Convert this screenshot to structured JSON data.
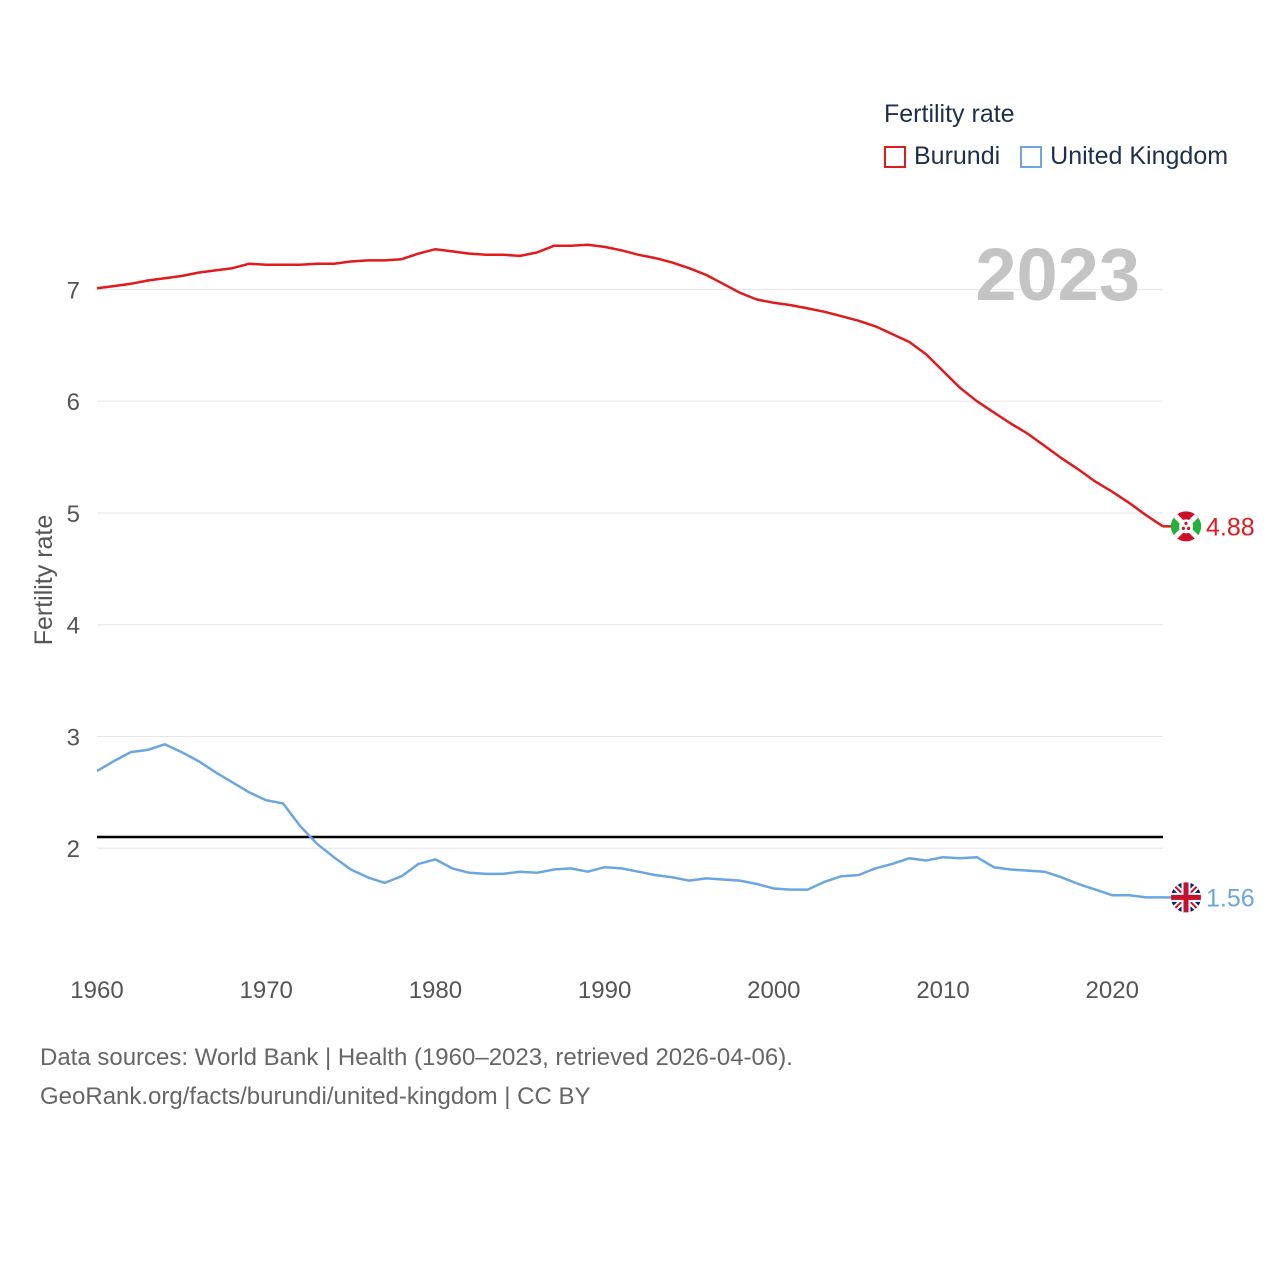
{
  "legend": {
    "title": "Fertility rate",
    "items": [
      {
        "label": "Burundi",
        "color": "#e31a1c"
      },
      {
        "label": "United Kingdom",
        "color": "#6aa6e0"
      }
    ]
  },
  "footer": {
    "line1": "Data sources: World Bank | Health (1960–2023, retrieved 2026-04-06).",
    "line2": "GeoRank.org/facts/burundi/united-kingdom | CC BY"
  },
  "chart_data": {
    "type": "line",
    "year_label": "2023",
    "ylabel": "Fertility rate",
    "xlabel": "",
    "xlim": [
      1960,
      2023
    ],
    "ylim": [
      1.0,
      7.8
    ],
    "x_ticks": [
      1960,
      1970,
      1980,
      1990,
      2000,
      2010,
      2020
    ],
    "y_ticks": [
      2,
      3,
      4,
      5,
      6,
      7
    ],
    "grid": true,
    "reference_line": {
      "y": 2.1,
      "color": "#000000"
    },
    "x": [
      1960,
      1961,
      1962,
      1963,
      1964,
      1965,
      1966,
      1967,
      1968,
      1969,
      1970,
      1971,
      1972,
      1973,
      1974,
      1975,
      1976,
      1977,
      1978,
      1979,
      1980,
      1981,
      1982,
      1983,
      1984,
      1985,
      1986,
      1987,
      1988,
      1989,
      1990,
      1991,
      1992,
      1993,
      1994,
      1995,
      1996,
      1997,
      1998,
      1999,
      2000,
      2001,
      2002,
      2003,
      2004,
      2005,
      2006,
      2007,
      2008,
      2009,
      2010,
      2011,
      2012,
      2013,
      2014,
      2015,
      2016,
      2017,
      2018,
      2019,
      2020,
      2021,
      2022,
      2023
    ],
    "series": [
      {
        "name": "Burundi",
        "color": "#e31a1c",
        "end_label": "4.88",
        "values": [
          7.01,
          7.03,
          7.05,
          7.08,
          7.1,
          7.12,
          7.15,
          7.17,
          7.19,
          7.23,
          7.22,
          7.22,
          7.22,
          7.23,
          7.23,
          7.25,
          7.26,
          7.26,
          7.27,
          7.32,
          7.36,
          7.34,
          7.32,
          7.31,
          7.31,
          7.3,
          7.33,
          7.39,
          7.39,
          7.4,
          7.38,
          7.35,
          7.31,
          7.28,
          7.24,
          7.19,
          7.13,
          7.05,
          6.97,
          6.91,
          6.88,
          6.86,
          6.83,
          6.8,
          6.76,
          6.72,
          6.67,
          6.6,
          6.53,
          6.42,
          6.27,
          6.12,
          6.0,
          5.9,
          5.8,
          5.71,
          5.6,
          5.49,
          5.39,
          5.28,
          5.19,
          5.09,
          4.98,
          4.88
        ]
      },
      {
        "name": "United Kingdom",
        "color": "#6aa6e0",
        "end_label": "1.56",
        "values": [
          2.69,
          2.78,
          2.86,
          2.88,
          2.93,
          2.86,
          2.78,
          2.68,
          2.59,
          2.5,
          2.43,
          2.4,
          2.2,
          2.04,
          1.92,
          1.81,
          1.74,
          1.69,
          1.75,
          1.86,
          1.9,
          1.82,
          1.78,
          1.77,
          1.77,
          1.79,
          1.78,
          1.81,
          1.82,
          1.79,
          1.83,
          1.82,
          1.79,
          1.76,
          1.74,
          1.71,
          1.73,
          1.72,
          1.71,
          1.68,
          1.64,
          1.63,
          1.63,
          1.7,
          1.75,
          1.76,
          1.82,
          1.86,
          1.91,
          1.89,
          1.92,
          1.91,
          1.92,
          1.83,
          1.81,
          1.8,
          1.79,
          1.74,
          1.68,
          1.63,
          1.58,
          1.58,
          1.56,
          1.56
        ]
      }
    ]
  }
}
